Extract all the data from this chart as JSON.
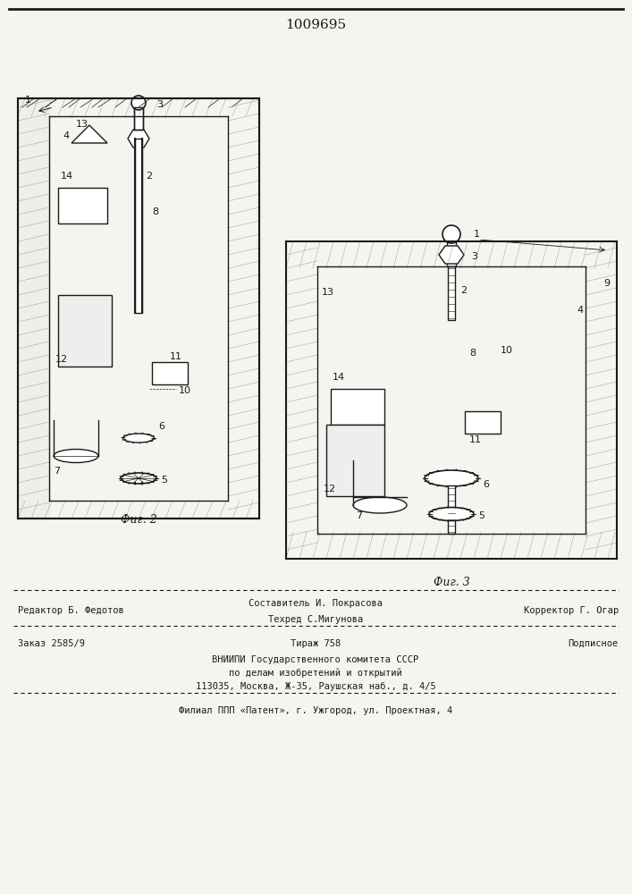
{
  "patent_number": "1009695",
  "fig2_label": "Фиг. 2",
  "fig3_label": "Фиг. 3",
  "footer_line1_left": "Редактор Б. Федотов",
  "footer_line1_center": "Составитель И. Покрасова",
  "footer_line2_center": "Техред С.Мигунова",
  "footer_line1_right": "Корректор Г. Огар",
  "footer_line3_left": "Заказ 2585/9",
  "footer_line3_center": "Тираж 758",
  "footer_line3_right": "Подписное",
  "footer_line4": "ВНИИПИ Государственного комитета СССР",
  "footer_line5": "по делам изобретений и открытий",
  "footer_line6": "113035, Москва, Ж-35, Раушская наб., д. 4/5",
  "footer_line7": "Филиал ППП «Патент», г. Ужгород, ул. Проектная, 4",
  "bg_color": "#f5f5f0",
  "drawing_color": "#1a1a1a",
  "hatch_color": "#555555"
}
